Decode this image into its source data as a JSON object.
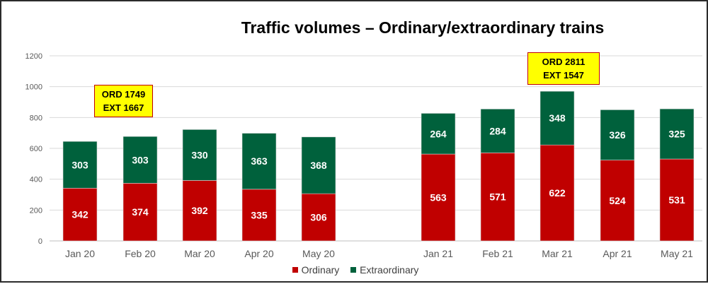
{
  "chart_data": {
    "type": "bar",
    "stacked": true,
    "title": "Traffic volumes – Ordinary/extraordinary trains",
    "categories": [
      "Jan 20",
      "Feb 20",
      "Mar 20",
      "Apr 20",
      "May 20",
      "Jan 21",
      "Feb 21",
      "Mar 21",
      "Apr 21",
      "May 21"
    ],
    "series": [
      {
        "name": "Ordinary",
        "color": "#c00000",
        "values": [
          342,
          374,
          392,
          335,
          306,
          563,
          571,
          622,
          524,
          531
        ]
      },
      {
        "name": "Extraordinary",
        "color": "#00613c",
        "values": [
          303,
          303,
          330,
          363,
          368,
          264,
          284,
          348,
          326,
          325
        ]
      }
    ],
    "ylim": [
      0,
      1200
    ],
    "yticks": [
      0,
      200,
      400,
      600,
      800,
      1000,
      1200
    ],
    "grid": true,
    "legend": "bottom",
    "annotations": [
      {
        "line1": "ORD 1749",
        "line2": "EXT 1667"
      },
      {
        "line1": "ORD 2811",
        "line2": "EXT 1547"
      }
    ]
  }
}
